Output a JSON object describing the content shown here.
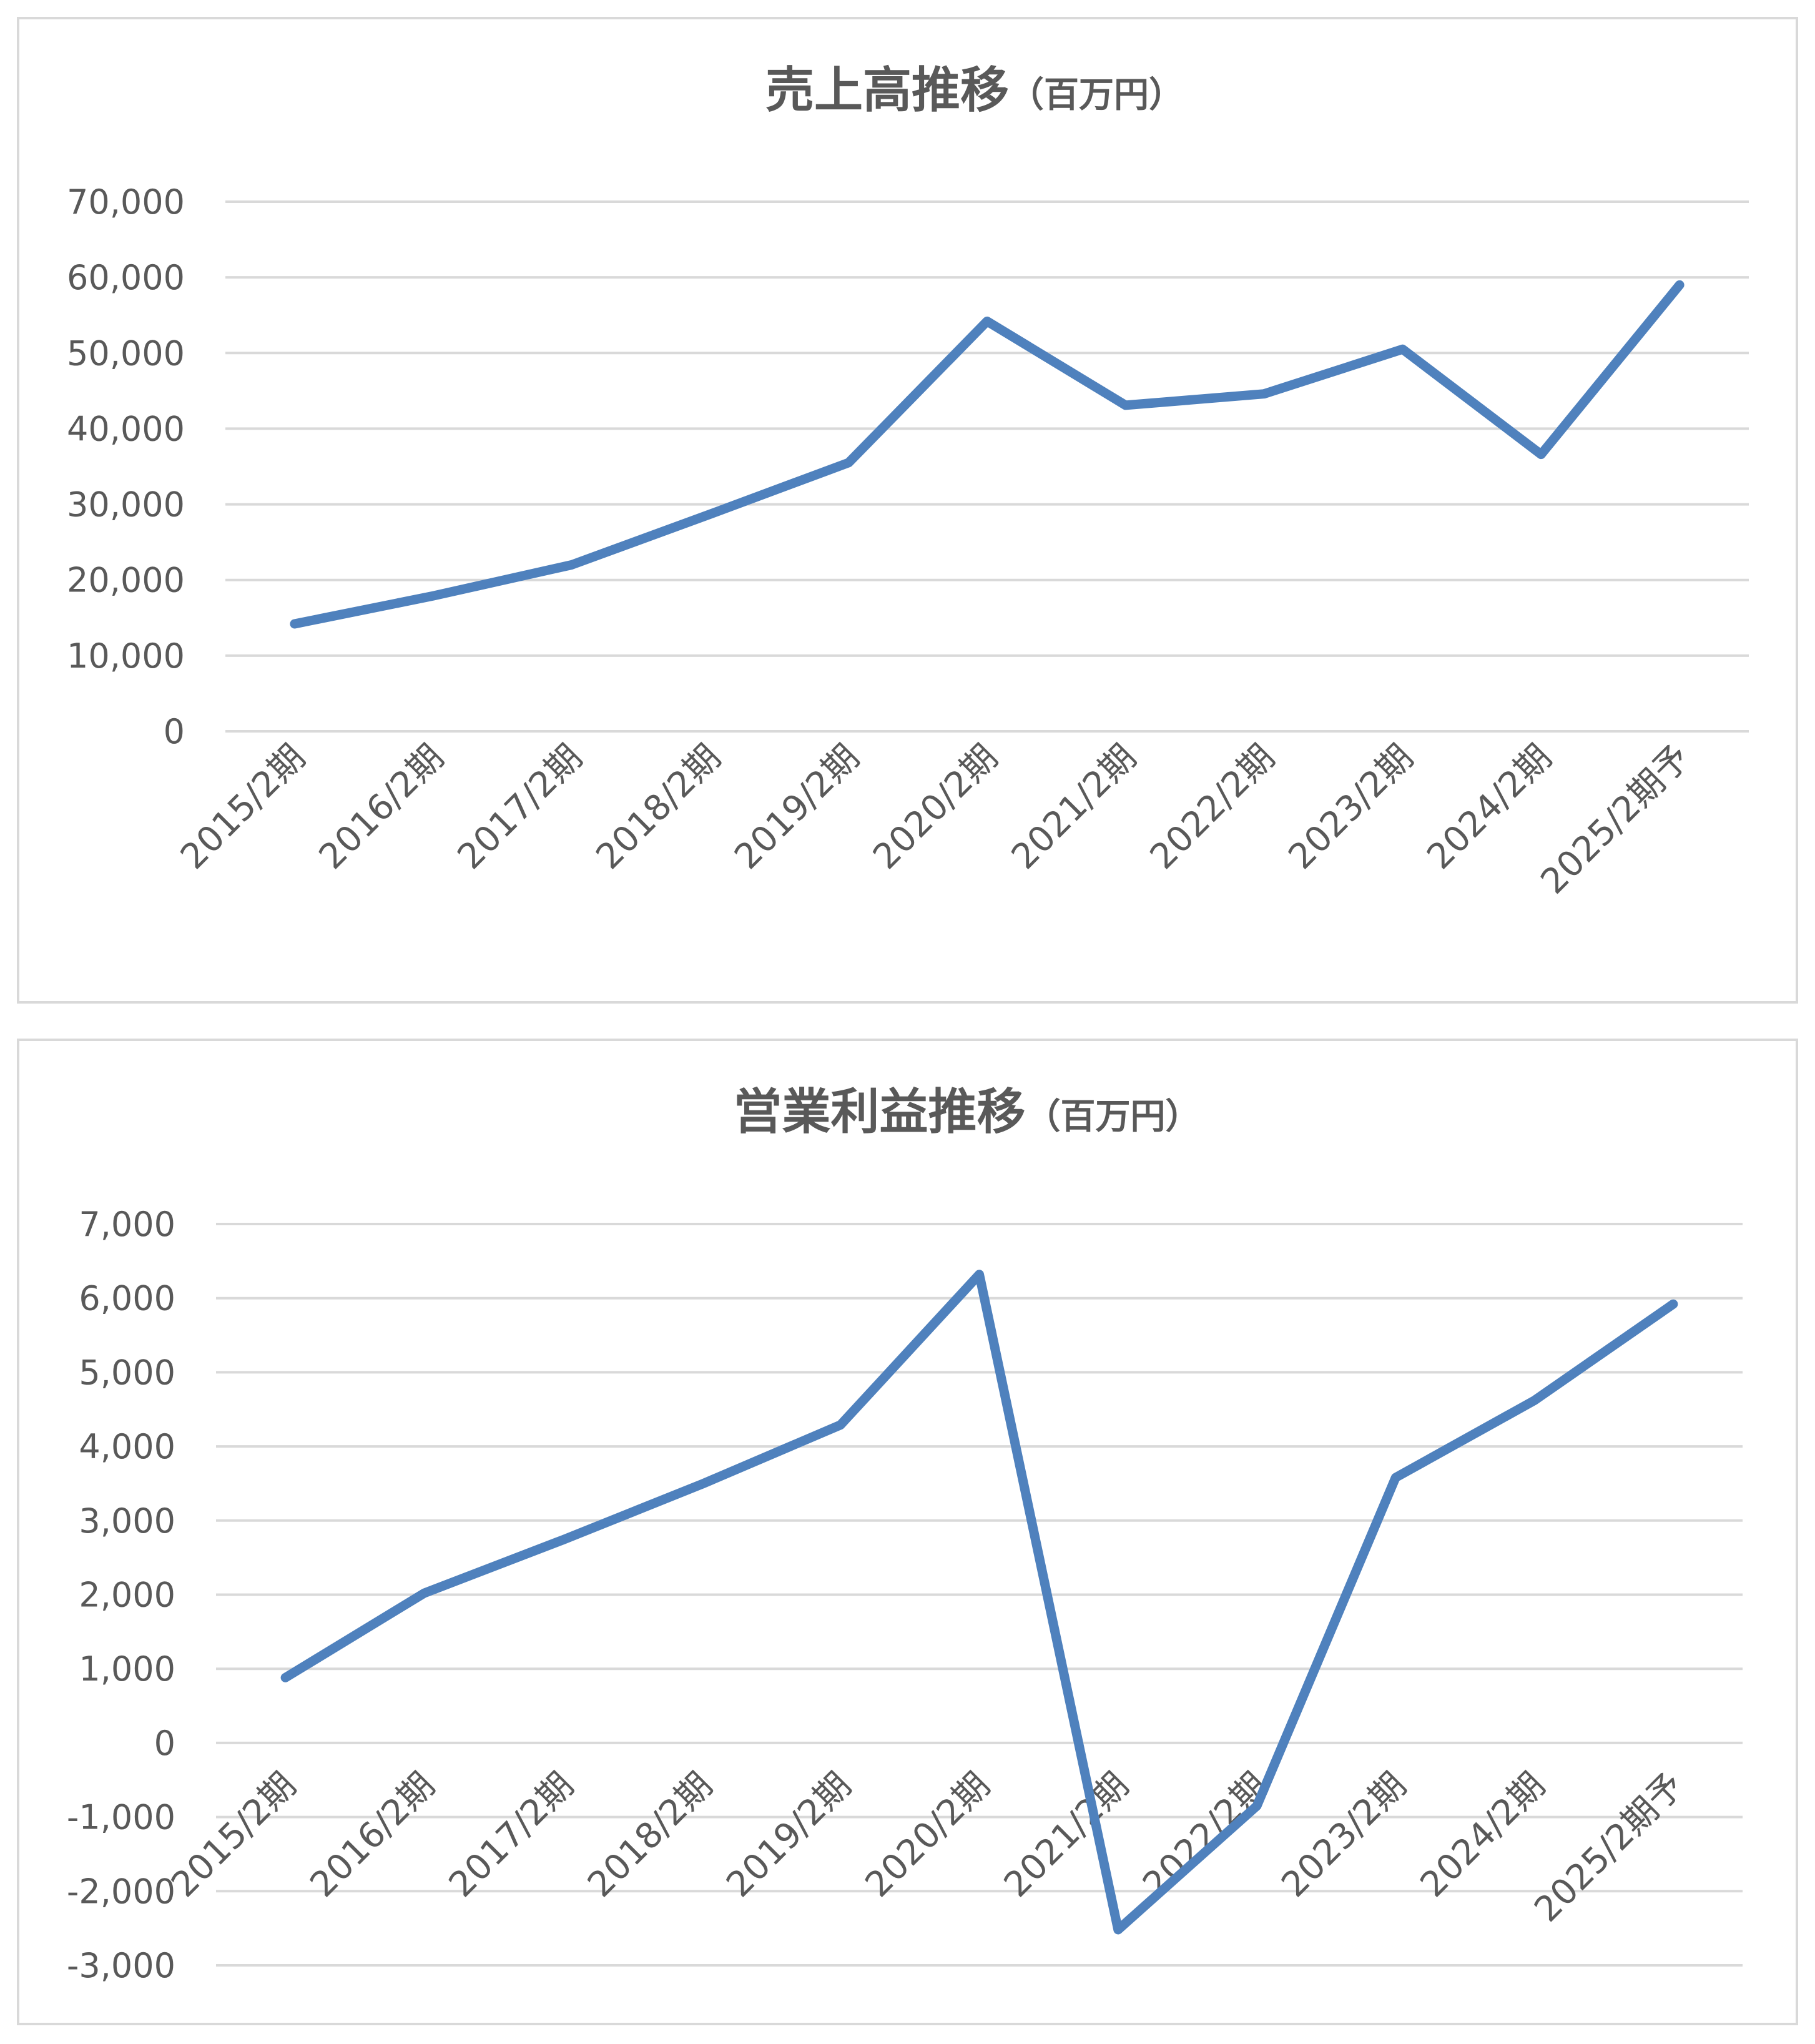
{
  "colors": {
    "line": "#4f81bd",
    "grid": "#d9d9d9",
    "text": "#595959",
    "border": "#d9d9d9"
  },
  "chart_data": [
    {
      "type": "line",
      "title": "売上高推移",
      "title_unit": "（百万円）",
      "categories": [
        "2015/2期",
        "2016/2期",
        "2017/2期",
        "2018/2期",
        "2019/2期",
        "2020/2期",
        "2021/2期",
        "2022/2期",
        "2023/2期",
        "2024/2期",
        "2025/2期予"
      ],
      "values": [
        14200,
        17900,
        22000,
        28700,
        35500,
        54200,
        43100,
        44600,
        50500,
        36600,
        59000
      ],
      "ylim": [
        0,
        70000
      ],
      "yticks": [
        "0",
        "10,000",
        "20,000",
        "30,000",
        "40,000",
        "50,000",
        "60,000",
        "70,000"
      ],
      "grid": true,
      "legend": "none"
    },
    {
      "type": "line",
      "title": "営業利益推移",
      "title_unit": "（百万円）",
      "categories": [
        "2015/2期",
        "2016/2期",
        "2017/2期",
        "2018/2期",
        "2019/2期",
        "2020/2期",
        "2021/2期",
        "2022/2期",
        "2023/2期",
        "2024/2期",
        "2025/2期予"
      ],
      "values": [
        880,
        2020,
        2740,
        3490,
        4290,
        6320,
        -2520,
        -850,
        3580,
        4620,
        5920
      ],
      "ylim": [
        -3000,
        7000
      ],
      "yticks": [
        "-3,000",
        "-2,000",
        "-1,000",
        "0",
        "1,000",
        "2,000",
        "3,000",
        "4,000",
        "5,000",
        "6,000",
        "7,000"
      ],
      "grid": true,
      "legend": "none"
    }
  ]
}
